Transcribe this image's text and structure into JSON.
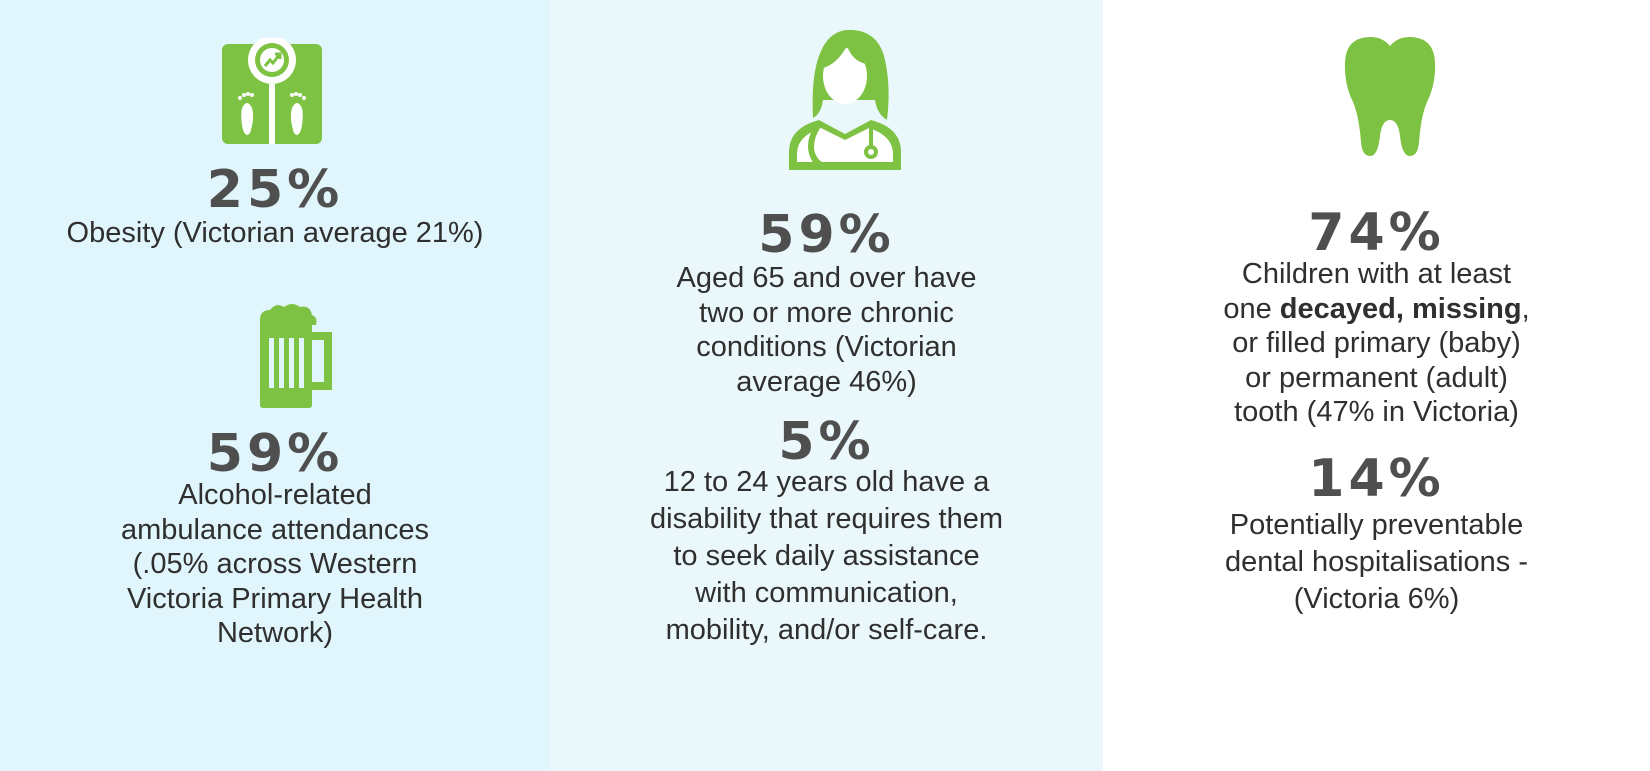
{
  "colors": {
    "accent_green": "#7dc242",
    "column_1_bg": "#e0f6fc",
    "column_2_bg": "#eaf8fc",
    "column_3_bg": "#ffffff",
    "percent_text": "#4f4f4f"
  },
  "columns": [
    {
      "stats": [
        {
          "icon": "scale-icon",
          "value": "25%",
          "lines": [
            "Obesity (Victorian average 21%)"
          ]
        },
        {
          "icon": "beer-mug-icon",
          "value": "59%",
          "lines": [
            "Alcohol-related",
            "ambulance attendances",
            "(.05% across Western",
            "Victoria Primary Health",
            "Network)"
          ]
        }
      ]
    },
    {
      "stats": [
        {
          "icon": "doctor-icon",
          "value": "59%",
          "lines": [
            "Aged 65 and over have",
            "two or more chronic",
            "conditions (Victorian",
            "average 46%)"
          ]
        },
        {
          "value": "5%",
          "lines": [
            "12 to 24 years old have a",
            "disability that requires them",
            "to seek daily assistance",
            "with communication,",
            "mobility, and/or self-care."
          ]
        }
      ]
    },
    {
      "stats": [
        {
          "icon": "tooth-icon",
          "value": "74%",
          "line1": "Children with at least",
          "line2_prefix": "one ",
          "line2_bold": "decayed, missing",
          "line2_suffix": ",",
          "line3": "or filled primary (baby)",
          "line4": "or permanent (adult)",
          "line5": "tooth (47% in Victoria)"
        },
        {
          "value": "14%",
          "lines": [
            "Potentially preventable",
            "dental hospitalisations  -",
            "(Victoria 6%)"
          ]
        }
      ]
    }
  ]
}
